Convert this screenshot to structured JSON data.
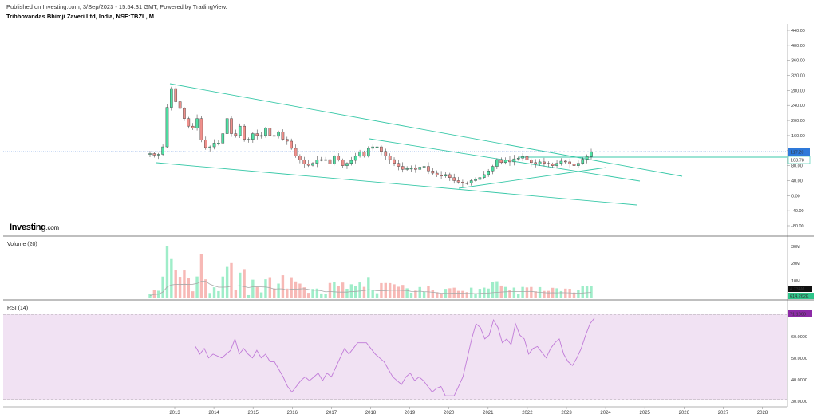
{
  "header": {
    "published": "Published on Investing.com, 3/Sep/2023 - 15:54:31 GMT, Powered by TradingView.",
    "symbol": "Tribhovandas Bhimji Zaveri Ltd, India, NSE:TBZL, M"
  },
  "logo": {
    "main": "Investing",
    "suffix": ".com"
  },
  "colors": {
    "up": "#4ee0a3",
    "down": "#f0908c",
    "trend": "#38c8a8",
    "rsi": "#c07ad8",
    "rsi_bg": "#f1e2f3",
    "vol_ma": "#a8a8a8"
  },
  "chart_data": [
    {
      "type": "candlestick",
      "panel": "price",
      "title": "",
      "y_ticks": [
        "440.00",
        "400.00",
        "360.00",
        "320.00",
        "280.00",
        "240.00",
        "200.00",
        "160.00",
        "120.00",
        "80.00",
        "40.00",
        "0.00",
        "-40.00",
        "-80.00"
      ],
      "ylim": [
        -100,
        460
      ],
      "x_labels": [
        "2013",
        "2014",
        "2015",
        "2016",
        "2017",
        "2018",
        "2019",
        "2020",
        "2021",
        "2022",
        "2023",
        "2024",
        "2025",
        "2026",
        "2027",
        "2028"
      ],
      "last_price_label": "117.20",
      "level_label": "103.78",
      "close_values": [
        112,
        108,
        110,
        130,
        235,
        285,
        250,
        232,
        205,
        185,
        180,
        205,
        148,
        128,
        130,
        140,
        140,
        165,
        205,
        165,
        160,
        185,
        150,
        150,
        165,
        160,
        160,
        180,
        160,
        158,
        170,
        150,
        145,
        126,
        106,
        95,
        85,
        81,
        86,
        95,
        96,
        96,
        85,
        105,
        95,
        80,
        86,
        94,
        105,
        116,
        105,
        126,
        130,
        130,
        118,
        106,
        96,
        86,
        78,
        70,
        72,
        73,
        70,
        76,
        78,
        66,
        60,
        55,
        52,
        56,
        48,
        40,
        36,
        34,
        33,
        40,
        43,
        48,
        56,
        66,
        78,
        96,
        88,
        95,
        90,
        98,
        100,
        104,
        95,
        88,
        84,
        90,
        86,
        84,
        80,
        86,
        92,
        90,
        84,
        80,
        86,
        97,
        104,
        117
      ]
    },
    {
      "type": "bar",
      "panel": "volume",
      "title": "Volume (20)",
      "y_ticks": [
        "30M",
        "20M",
        "10M"
      ],
      "ma_label": "4.734M",
      "last_label": "614.262K"
    },
    {
      "type": "line",
      "panel": "rsi",
      "title": "RSI (14)",
      "y_ticks": [
        "60.0000",
        "50.0000",
        "40.0000",
        "30.0000"
      ],
      "ylim": [
        28,
        73
      ],
      "last_label": "71.1868",
      "values": [
        56,
        52,
        55,
        50,
        52,
        51,
        50,
        52,
        54,
        60,
        52,
        55,
        52,
        50,
        54,
        50,
        52,
        48,
        48,
        44,
        40,
        35,
        32,
        35,
        38,
        40,
        38,
        40,
        42,
        38,
        42,
        40,
        45,
        50,
        55,
        52,
        55,
        58,
        58,
        58,
        55,
        52,
        50,
        48,
        44,
        40,
        38,
        36,
        40,
        42,
        38,
        40,
        38,
        35,
        32,
        34,
        35,
        30,
        30,
        30,
        35,
        40,
        50,
        60,
        68,
        66,
        60,
        62,
        70,
        66,
        58,
        60,
        57,
        68,
        62,
        60,
        52,
        55,
        56,
        53,
        50,
        55,
        58,
        60,
        52,
        48,
        46,
        50,
        55,
        62,
        68,
        71
      ]
    }
  ]
}
